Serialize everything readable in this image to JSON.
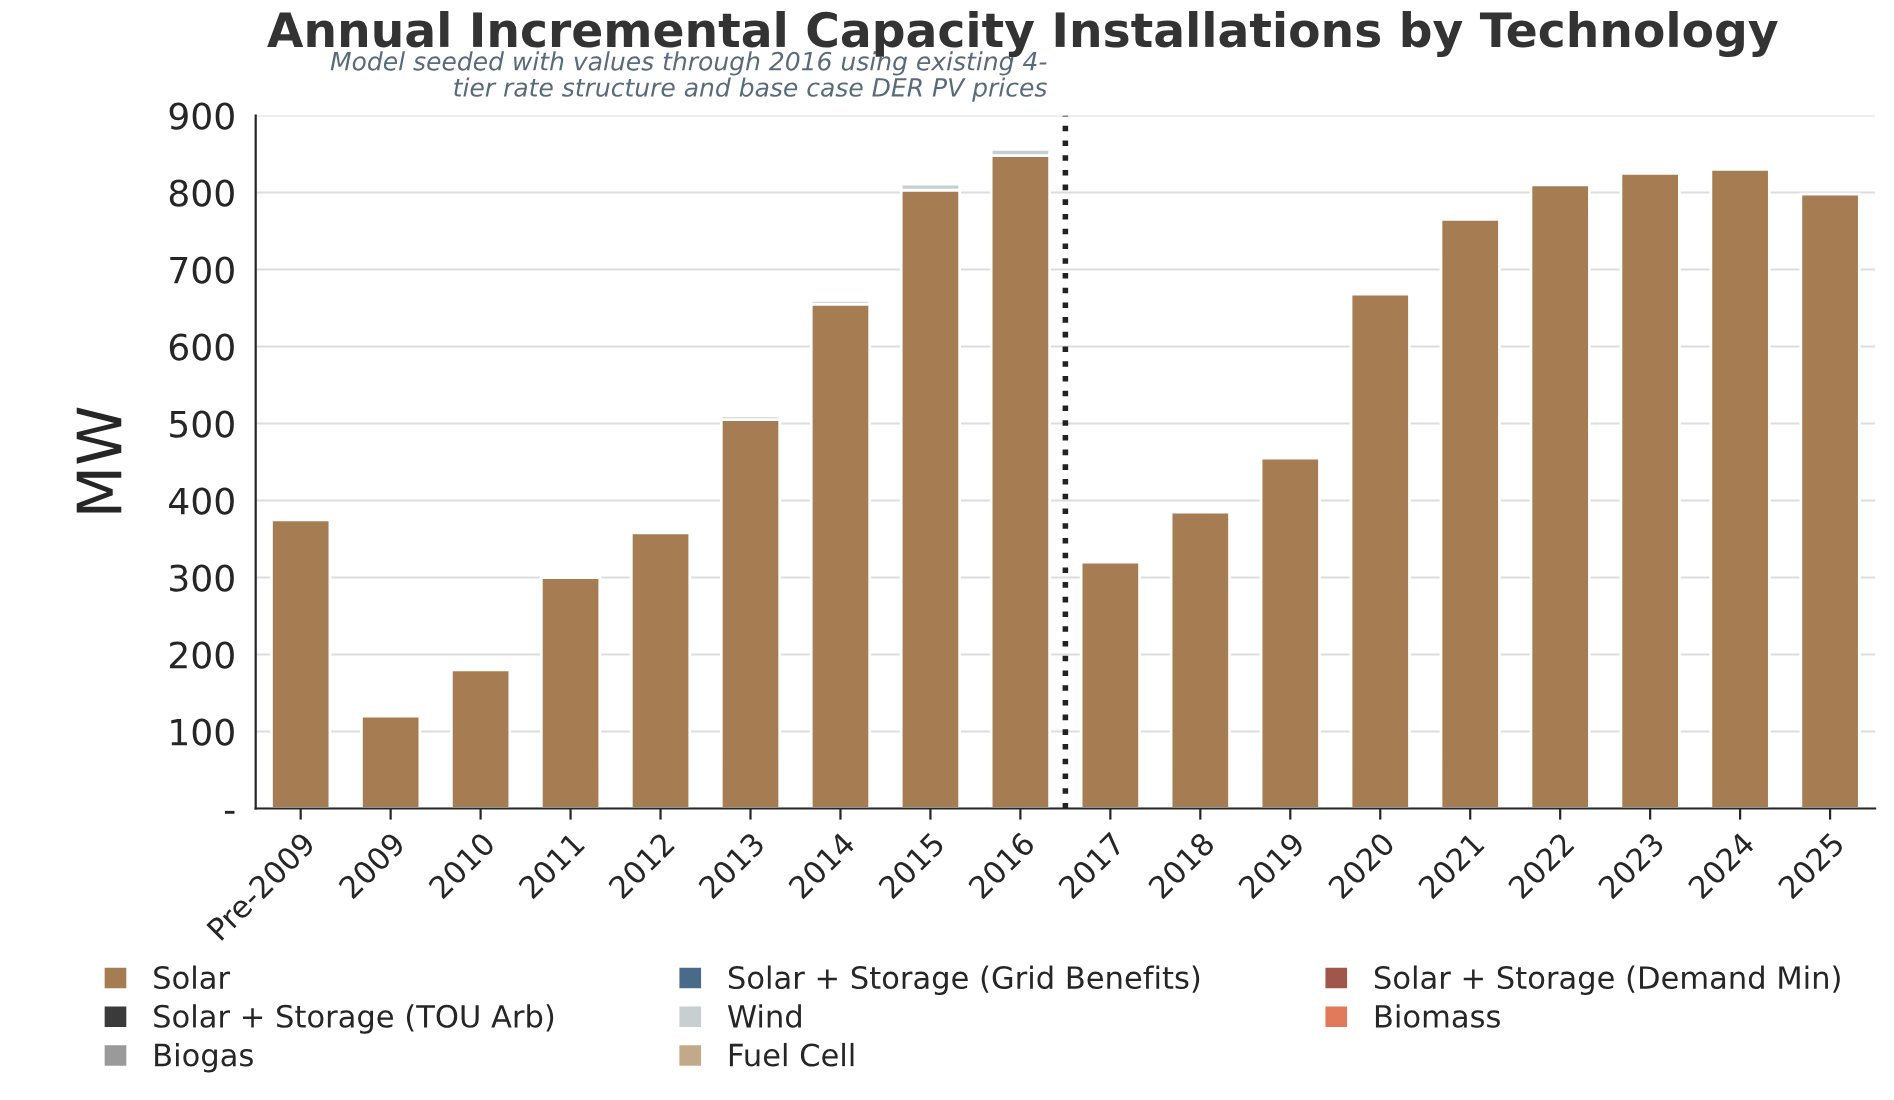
{
  "chart_data": {
    "type": "bar",
    "stacked": true,
    "title": "Annual Incremental Capacity Installations by Technology",
    "ylabel": "MW",
    "categories": [
      "Pre-2009",
      "2009",
      "2010",
      "2011",
      "2012",
      "2013",
      "2014",
      "2015",
      "2016",
      "2017",
      "2018",
      "2019",
      "2020",
      "2021",
      "2022",
      "2023",
      "2024",
      "2025"
    ],
    "series": [
      {
        "name": "Solar",
        "color": "#a67c52",
        "values": [
          375,
          120,
          180,
          300,
          358,
          505,
          655,
          803,
          848,
          320,
          385,
          455,
          668,
          765,
          810,
          825,
          830,
          798
        ]
      },
      {
        "name": "Solar + Storage (Grid Benefits)",
        "color": "#4a6a8a",
        "values": [
          null,
          null,
          null,
          null,
          null,
          null,
          null,
          null,
          null,
          null,
          null,
          null,
          null,
          null,
          null,
          null,
          null,
          null
        ]
      },
      {
        "name": "Solar + Storage (Demand Min)",
        "color": "#a0564a",
        "values": [
          null,
          null,
          null,
          null,
          null,
          null,
          null,
          null,
          null,
          null,
          null,
          null,
          null,
          null,
          null,
          null,
          null,
          null
        ]
      },
      {
        "name": "Solar + Storage (TOU Arb)",
        "color": "#3a3a3a",
        "values": [
          null,
          null,
          null,
          null,
          null,
          null,
          null,
          null,
          null,
          null,
          null,
          null,
          null,
          null,
          null,
          null,
          null,
          null
        ]
      },
      {
        "name": "Wind",
        "color": "#c8cfd0",
        "values": [
          null,
          null,
          null,
          null,
          null,
          5,
          5,
          8,
          8,
          null,
          null,
          null,
          null,
          null,
          null,
          null,
          null,
          null
        ]
      },
      {
        "name": "Biomass",
        "color": "#e07a5a",
        "values": [
          null,
          null,
          null,
          null,
          null,
          null,
          null,
          null,
          null,
          null,
          null,
          null,
          null,
          null,
          null,
          null,
          null,
          null
        ]
      },
      {
        "name": "Biogas",
        "color": "#9a9a9a",
        "values": [
          null,
          null,
          null,
          null,
          null,
          null,
          null,
          null,
          null,
          null,
          null,
          null,
          null,
          null,
          null,
          null,
          null,
          null
        ]
      },
      {
        "name": "Fuel Cell",
        "color": "#c4a88a",
        "values": [
          null,
          null,
          null,
          null,
          null,
          null,
          null,
          null,
          null,
          null,
          null,
          null,
          null,
          null,
          null,
          null,
          null,
          null
        ]
      }
    ],
    "ylim": [
      0,
      900
    ],
    "yticks": [
      {
        "value": 0,
        "label": "-"
      },
      100,
      200,
      300,
      400,
      500,
      600,
      700,
      800,
      900
    ],
    "ref_lines": [
      {
        "axis": "x",
        "value": "2016",
        "label": "Model seeded with values through 2016 using existing 4-\ntier rate structure and base case DER PV prices",
        "color": "#222222",
        "line_style": "dotted"
      }
    ],
    "grid": "y",
    "legend": "bottom"
  }
}
